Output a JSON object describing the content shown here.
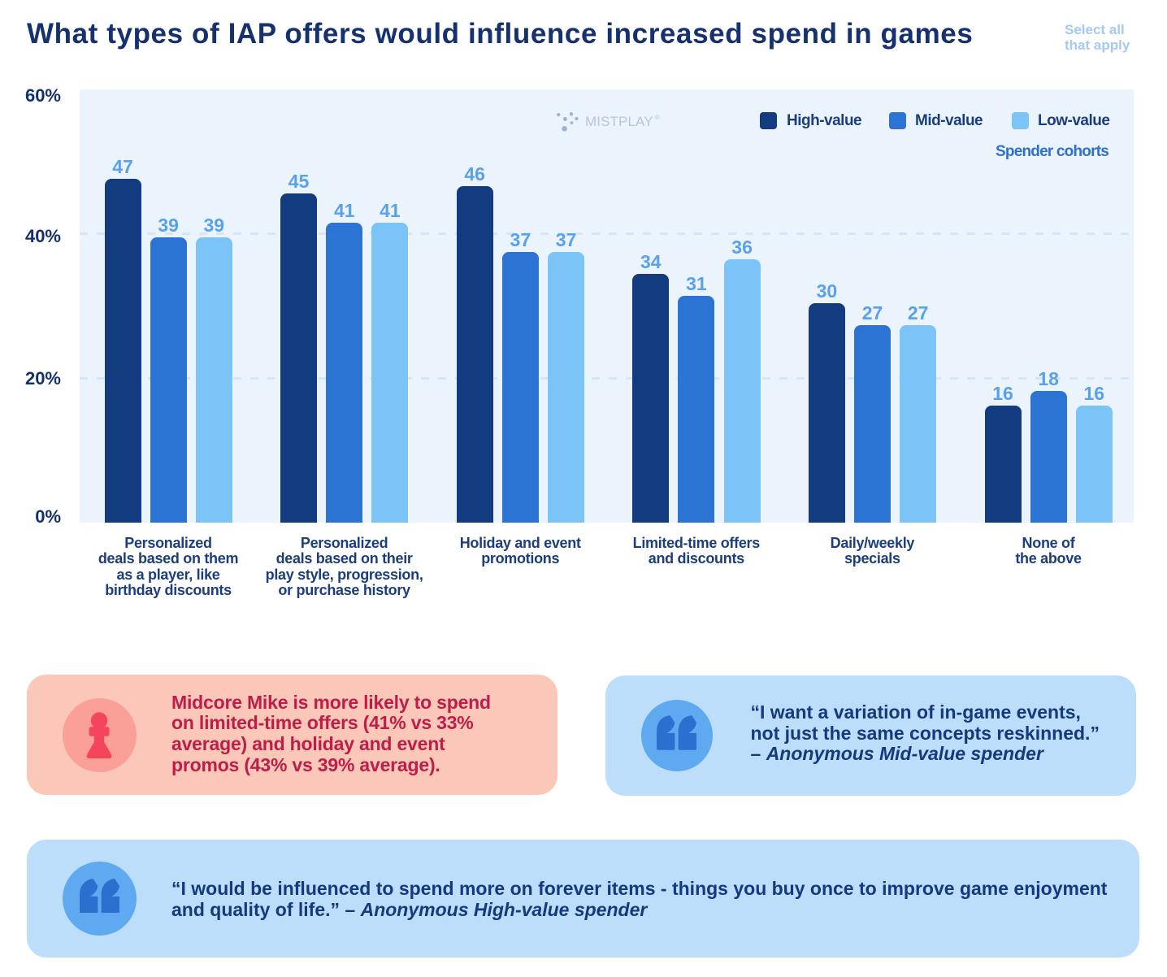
{
  "header": {
    "title": "What types of IAP offers would influence increased spend in games",
    "note_lines": [
      "Select all",
      "that apply"
    ]
  },
  "watermark": {
    "brand": "MISTPLAY",
    "trademark": "®"
  },
  "legend": {
    "caption": "Spender cohorts",
    "items": [
      {
        "label": "High-value",
        "color": "#133B80"
      },
      {
        "label": "Mid-value",
        "color": "#2B74D4"
      },
      {
        "label": "Low-value",
        "color": "#7CC4F8"
      }
    ]
  },
  "chart_data": {
    "type": "bar",
    "title": "What types of IAP offers would influence increased spend in games",
    "categories": [
      "Personalized deals based on them as a player, like birthday discounts",
      "Personalized deals based on their play style, progression, or purchase history",
      "Holiday and event promotions",
      "Limited-time offers and discounts",
      "Daily/weekly specials",
      "None of the above"
    ],
    "category_lines": [
      [
        "Personalized",
        "deals based on them",
        "as a player, like",
        "birthday discounts"
      ],
      [
        "Personalized",
        "deals based on their",
        "play style, progression,",
        "or purchase history"
      ],
      [
        "Holiday and event",
        "promotions"
      ],
      [
        "Limited-time offers",
        "and discounts"
      ],
      [
        "Daily/weekly",
        "specials"
      ],
      [
        "None of",
        "the above"
      ]
    ],
    "series": [
      {
        "name": "High-value",
        "color": "#133B80",
        "values": [
          47,
          45,
          46,
          34,
          30,
          16
        ]
      },
      {
        "name": "Mid-value",
        "color": "#2B74D4",
        "values": [
          39,
          41,
          37,
          31,
          27,
          18
        ]
      },
      {
        "name": "Low-value",
        "color": "#7CC4F8",
        "values": [
          39,
          41,
          37,
          36,
          27,
          16
        ]
      }
    ],
    "ylim": [
      0,
      60
    ],
    "yticks": [
      {
        "value": 60,
        "label": "60%"
      },
      {
        "value": 40,
        "label": "40%"
      },
      {
        "value": 20,
        "label": "20%"
      },
      {
        "value": 0,
        "label": "0%"
      }
    ],
    "gridline_values": [
      40,
      20
    ],
    "grid": true,
    "legend_position": "top-right",
    "xlabel": "",
    "ylabel": "",
    "value_labels": true,
    "colors": {
      "plot_background": "#EBF4FD",
      "gridline": "#D4E6F8",
      "value_label": "#59A0ED",
      "tick_label": "#14306D",
      "category_label": "#1C3E7C"
    }
  },
  "callouts": {
    "persona": {
      "icon": "pawn-icon",
      "lines": [
        "Midcore Mike is more likely to spend",
        "on limited-time offers (41% vs 33%",
        "average) and holiday and event",
        "promos (43% vs 39% average)."
      ],
      "colors": {
        "background": "#FBC7B8",
        "circle": "#FB9F99",
        "icon": "#F4455C",
        "text": "#BE1D47"
      }
    },
    "quote_mid": {
      "icon": "quote-icon",
      "line1": "“I want a variation of in-game events,",
      "line2": "not just the same concepts reskinned.”",
      "dash": "– ",
      "attribution": "Anonymous Mid-value spender",
      "colors": {
        "background": "#BCDEFB",
        "circle": "#5FA9F1",
        "icon": "#2B70CE",
        "text": "#15397E"
      }
    },
    "quote_high": {
      "icon": "quote-icon",
      "line1": "“I would be influenced to spend more on forever items - things you buy once to improve game enjoyment",
      "line2_normal": "and quality of life.” – ",
      "attribution": "Anonymous High-value spender",
      "colors": {
        "background": "#BCDEFB",
        "circle": "#5FA9F1",
        "icon": "#2B70CE",
        "text": "#15397E"
      }
    }
  }
}
